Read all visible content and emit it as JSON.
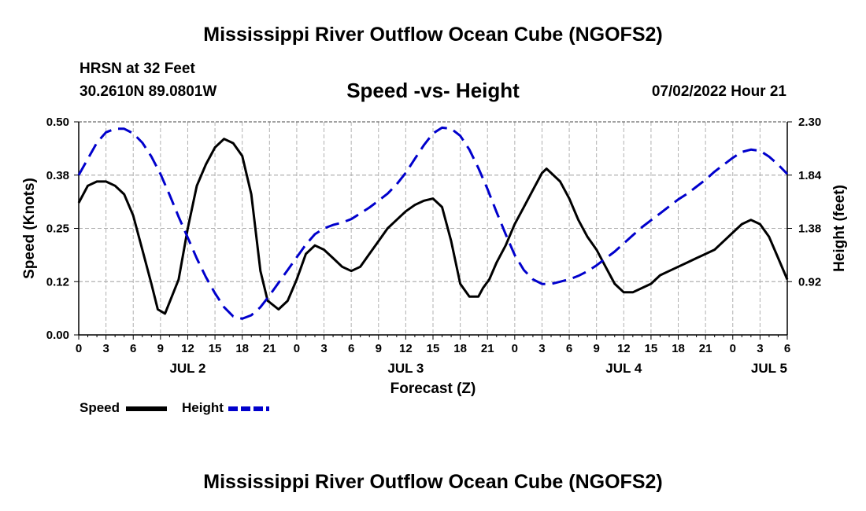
{
  "header": {
    "title": "Mississippi River Outflow Ocean Cube (NGOFS2)",
    "station": "HRSN at 32 Feet",
    "coordinates": "30.2610N  89.0801W",
    "subtitle": "Speed -vs- Height",
    "datetime": "07/02/2022 Hour 21"
  },
  "footer": {
    "title": "Mississippi River Outflow Ocean Cube (NGOFS2)"
  },
  "legend": {
    "speed_label": "Speed",
    "height_label": "Height"
  },
  "colors": {
    "speed": "#000000",
    "height": "#0000cc",
    "grid": "#b0b0b0"
  },
  "chart_data": {
    "type": "line",
    "title": "Speed -vs- Height",
    "xlabel": "Forecast (Z)",
    "ylabel": "Speed (Knots)",
    "y2label": "Height (feet)",
    "xlim": [
      0,
      78
    ],
    "ylim": [
      0,
      0.5
    ],
    "y2lim": [
      0.46,
      2.3
    ],
    "grid": true,
    "x_ticks": [
      0,
      3,
      6,
      9,
      12,
      15,
      18,
      21,
      24,
      27,
      30,
      33,
      36,
      39,
      42,
      45,
      48,
      51,
      54,
      57,
      60,
      63,
      66,
      69,
      72,
      75,
      78
    ],
    "x_tick_labels": [
      "0",
      "3",
      "6",
      "9",
      "12",
      "15",
      "18",
      "21",
      "0",
      "3",
      "6",
      "9",
      "12",
      "15",
      "18",
      "21",
      "0",
      "3",
      "6",
      "9",
      "12",
      "15",
      "18",
      "21",
      "0",
      "3",
      "6"
    ],
    "day_labels": [
      {
        "x": 12,
        "label": "JUL 2"
      },
      {
        "x": 36,
        "label": "JUL 3"
      },
      {
        "x": 60,
        "label": "JUL 4"
      },
      {
        "x": 76,
        "label": "JUL 5"
      }
    ],
    "y_ticks": [
      0.0,
      0.125,
      0.25,
      0.375,
      0.5
    ],
    "y_tick_labels": [
      "0.00",
      "0.12",
      "0.25",
      "0.38",
      "0.50"
    ],
    "y2_ticks": [
      0.92,
      1.38,
      1.84,
      2.3
    ],
    "y2_tick_labels": [
      "0.92",
      "1.38",
      "1.84",
      "2.30"
    ],
    "series": [
      {
        "name": "Speed",
        "axis": "left",
        "style": "solid",
        "x": [
          0,
          1,
          2,
          3,
          4,
          5,
          6,
          7,
          8,
          8.7,
          9.5,
          11,
          12,
          13,
          14,
          15,
          16,
          17,
          18,
          19,
          20,
          20.8,
          22,
          23,
          24,
          25,
          26,
          27,
          28,
          29,
          30,
          31,
          32,
          33,
          34,
          35,
          36,
          37,
          38,
          39,
          40,
          41,
          42,
          43,
          44,
          44.5,
          45.2,
          46,
          47,
          48,
          49,
          50,
          51,
          51.5,
          52,
          53,
          54,
          55,
          56,
          57,
          58,
          59,
          60,
          61,
          62,
          63,
          64,
          65,
          66,
          67,
          68,
          69,
          70,
          71,
          72,
          73,
          74,
          75,
          76,
          77,
          78
        ],
        "values": [
          0.31,
          0.35,
          0.36,
          0.36,
          0.35,
          0.33,
          0.28,
          0.2,
          0.12,
          0.06,
          0.05,
          0.13,
          0.25,
          0.35,
          0.4,
          0.44,
          0.46,
          0.45,
          0.42,
          0.33,
          0.15,
          0.08,
          0.06,
          0.08,
          0.13,
          0.19,
          0.21,
          0.2,
          0.18,
          0.16,
          0.15,
          0.16,
          0.19,
          0.22,
          0.25,
          0.27,
          0.29,
          0.305,
          0.315,
          0.32,
          0.3,
          0.22,
          0.12,
          0.09,
          0.09,
          0.11,
          0.13,
          0.17,
          0.21,
          0.26,
          0.3,
          0.34,
          0.38,
          0.39,
          0.38,
          0.36,
          0.32,
          0.27,
          0.23,
          0.2,
          0.16,
          0.12,
          0.1,
          0.1,
          0.11,
          0.12,
          0.14,
          0.15,
          0.16,
          0.17,
          0.18,
          0.19,
          0.2,
          0.22,
          0.24,
          0.26,
          0.27,
          0.26,
          0.23,
          0.18,
          0.13
        ]
      },
      {
        "name": "Height",
        "axis": "right",
        "style": "dashed",
        "x": [
          0,
          1,
          2,
          3,
          4,
          5,
          6,
          7,
          8,
          9,
          10,
          11,
          12,
          13,
          14,
          15,
          16,
          17,
          18,
          19,
          20,
          21,
          22,
          23,
          24,
          25,
          26,
          27,
          28,
          29,
          30,
          31,
          32,
          33,
          34,
          35,
          36,
          37,
          38,
          39,
          40,
          41,
          42,
          43,
          44,
          45,
          46,
          47,
          48,
          49,
          50,
          51,
          52,
          53,
          54,
          55,
          56,
          57,
          58,
          59,
          60,
          61,
          62,
          63,
          64,
          65,
          66,
          67,
          68,
          69,
          70,
          71,
          72,
          73,
          74,
          75,
          76,
          77,
          78
        ],
        "values": [
          1.84,
          1.98,
          2.12,
          2.21,
          2.24,
          2.24,
          2.2,
          2.12,
          2.0,
          1.85,
          1.67,
          1.48,
          1.3,
          1.12,
          0.96,
          0.82,
          0.7,
          0.62,
          0.6,
          0.63,
          0.7,
          0.8,
          0.91,
          1.02,
          1.13,
          1.24,
          1.33,
          1.38,
          1.41,
          1.43,
          1.46,
          1.51,
          1.56,
          1.62,
          1.68,
          1.76,
          1.86,
          1.98,
          2.1,
          2.2,
          2.25,
          2.24,
          2.18,
          2.06,
          1.9,
          1.72,
          1.52,
          1.33,
          1.15,
          1.02,
          0.94,
          0.9,
          0.9,
          0.92,
          0.94,
          0.97,
          1.01,
          1.06,
          1.12,
          1.18,
          1.25,
          1.32,
          1.39,
          1.45,
          1.51,
          1.57,
          1.63,
          1.68,
          1.74,
          1.8,
          1.87,
          1.93,
          1.99,
          2.04,
          2.06,
          2.05,
          2.0,
          1.93,
          1.85
        ]
      }
    ]
  }
}
